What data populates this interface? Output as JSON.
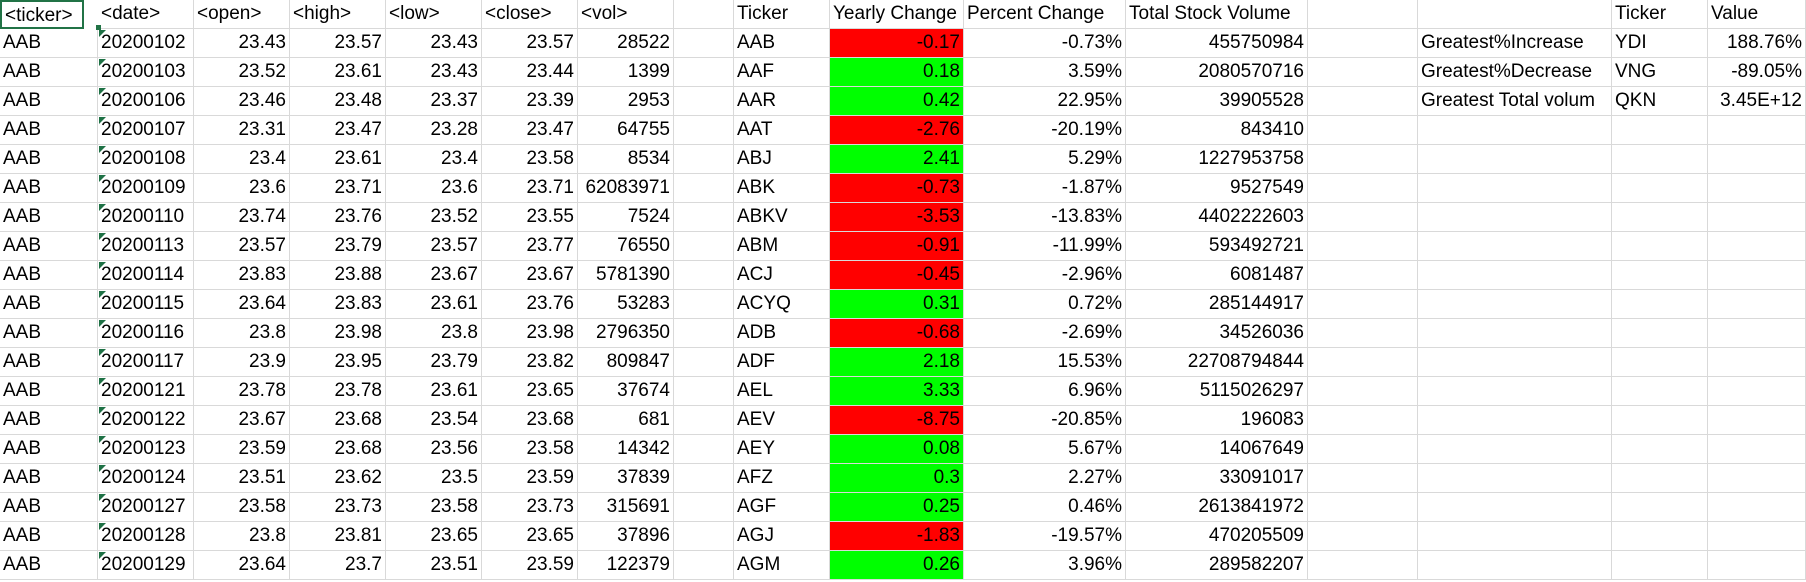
{
  "headers": {
    "ticker": "<ticker>",
    "date": "<date>",
    "open": "<open>",
    "high": "<high>",
    "low": "<low>",
    "close": "<close>",
    "vol": "<vol>",
    "summary_ticker": "Ticker",
    "yearly_change": "Yearly Change",
    "percent_change": "Percent Change",
    "total_volume": "Total Stock Volume",
    "stats_ticker": "Ticker",
    "stats_value": "Value"
  },
  "raw_rows": [
    [
      "AAB",
      "20200102",
      "23.43",
      "23.57",
      "23.43",
      "23.57",
      "28522"
    ],
    [
      "AAB",
      "20200103",
      "23.52",
      "23.61",
      "23.43",
      "23.44",
      "1399"
    ],
    [
      "AAB",
      "20200106",
      "23.46",
      "23.48",
      "23.37",
      "23.39",
      "2953"
    ],
    [
      "AAB",
      "20200107",
      "23.31",
      "23.47",
      "23.28",
      "23.47",
      "64755"
    ],
    [
      "AAB",
      "20200108",
      "23.4",
      "23.61",
      "23.4",
      "23.58",
      "8534"
    ],
    [
      "AAB",
      "20200109",
      "23.6",
      "23.71",
      "23.6",
      "23.71",
      "62083971"
    ],
    [
      "AAB",
      "20200110",
      "23.74",
      "23.76",
      "23.52",
      "23.55",
      "7524"
    ],
    [
      "AAB",
      "20200113",
      "23.57",
      "23.79",
      "23.57",
      "23.77",
      "76550"
    ],
    [
      "AAB",
      "20200114",
      "23.83",
      "23.88",
      "23.67",
      "23.67",
      "5781390"
    ],
    [
      "AAB",
      "20200115",
      "23.64",
      "23.83",
      "23.61",
      "23.76",
      "53283"
    ],
    [
      "AAB",
      "20200116",
      "23.8",
      "23.98",
      "23.8",
      "23.98",
      "2796350"
    ],
    [
      "AAB",
      "20200117",
      "23.9",
      "23.95",
      "23.79",
      "23.82",
      "809847"
    ],
    [
      "AAB",
      "20200121",
      "23.78",
      "23.78",
      "23.61",
      "23.65",
      "37674"
    ],
    [
      "AAB",
      "20200122",
      "23.67",
      "23.68",
      "23.54",
      "23.68",
      "681"
    ],
    [
      "AAB",
      "20200123",
      "23.59",
      "23.68",
      "23.56",
      "23.58",
      "14342"
    ],
    [
      "AAB",
      "20200124",
      "23.51",
      "23.62",
      "23.5",
      "23.59",
      "37839"
    ],
    [
      "AAB",
      "20200127",
      "23.58",
      "23.73",
      "23.58",
      "23.73",
      "315691"
    ],
    [
      "AAB",
      "20200128",
      "23.8",
      "23.81",
      "23.65",
      "23.65",
      "37896"
    ],
    [
      "AAB",
      "20200129",
      "23.64",
      "23.7",
      "23.51",
      "23.59",
      "122379"
    ]
  ],
  "summary_rows": [
    {
      "ticker": "AAB",
      "change": "-0.17",
      "pct": "-0.73%",
      "vol": "455750984",
      "dir": "neg"
    },
    {
      "ticker": "AAF",
      "change": "0.18",
      "pct": "3.59%",
      "vol": "2080570716",
      "dir": "pos"
    },
    {
      "ticker": "AAR",
      "change": "0.42",
      "pct": "22.95%",
      "vol": "39905528",
      "dir": "pos"
    },
    {
      "ticker": "AAT",
      "change": "-2.76",
      "pct": "-20.19%",
      "vol": "843410",
      "dir": "neg"
    },
    {
      "ticker": "ABJ",
      "change": "2.41",
      "pct": "5.29%",
      "vol": "1227953758",
      "dir": "pos"
    },
    {
      "ticker": "ABK",
      "change": "-0.73",
      "pct": "-1.87%",
      "vol": "9527549",
      "dir": "neg"
    },
    {
      "ticker": "ABKV",
      "change": "-3.53",
      "pct": "-13.83%",
      "vol": "4402222603",
      "dir": "neg"
    },
    {
      "ticker": "ABM",
      "change": "-0.91",
      "pct": "-11.99%",
      "vol": "593492721",
      "dir": "neg"
    },
    {
      "ticker": "ACJ",
      "change": "-0.45",
      "pct": "-2.96%",
      "vol": "6081487",
      "dir": "neg"
    },
    {
      "ticker": "ACYQ",
      "change": "0.31",
      "pct": "0.72%",
      "vol": "285144917",
      "dir": "pos"
    },
    {
      "ticker": "ADB",
      "change": "-0.68",
      "pct": "-2.69%",
      "vol": "34526036",
      "dir": "neg"
    },
    {
      "ticker": "ADF",
      "change": "2.18",
      "pct": "15.53%",
      "vol": "22708794844",
      "dir": "pos"
    },
    {
      "ticker": "AEL",
      "change": "3.33",
      "pct": "6.96%",
      "vol": "5115026297",
      "dir": "pos"
    },
    {
      "ticker": "AEV",
      "change": "-8.75",
      "pct": "-20.85%",
      "vol": "196083",
      "dir": "neg"
    },
    {
      "ticker": "AEY",
      "change": "0.08",
      "pct": "5.67%",
      "vol": "14067649",
      "dir": "pos"
    },
    {
      "ticker": "AFZ",
      "change": "0.3",
      "pct": "2.27%",
      "vol": "33091017",
      "dir": "pos"
    },
    {
      "ticker": "AGF",
      "change": "0.25",
      "pct": "0.46%",
      "vol": "2613841972",
      "dir": "pos"
    },
    {
      "ticker": "AGJ",
      "change": "-1.83",
      "pct": "-19.57%",
      "vol": "470205509",
      "dir": "neg"
    },
    {
      "ticker": "AGM",
      "change": "0.26",
      "pct": "3.96%",
      "vol": "289582207",
      "dir": "pos"
    }
  ],
  "stats_rows": [
    {
      "label": "Greatest%Increase",
      "ticker": "YDI",
      "value": "188.76%"
    },
    {
      "label": "Greatest%Decrease",
      "ticker": "VNG",
      "value": "-89.05%"
    },
    {
      "label": "Greatest Total volum",
      "ticker": "QKN",
      "value": "3.45E+12"
    }
  ],
  "colors": {
    "negative_fill": "#ff0000",
    "positive_fill": "#00ff00",
    "gridline": "#d9d9d9",
    "selection": "#217346",
    "text_indicator": "#1e7145"
  }
}
